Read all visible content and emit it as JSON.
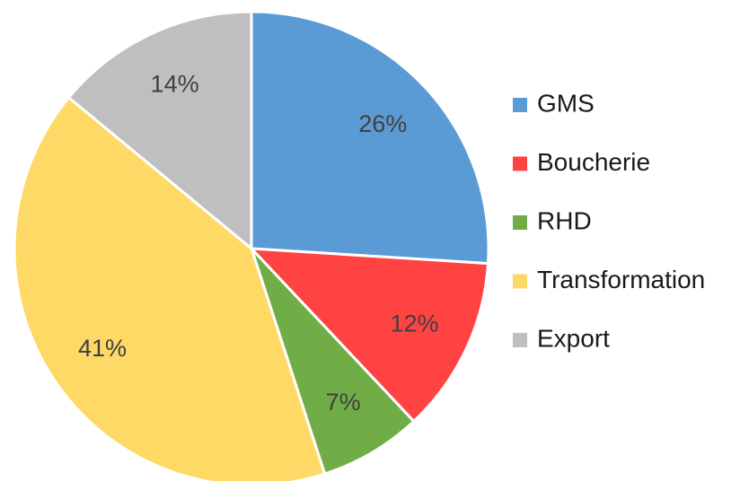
{
  "chart_data": {
    "type": "pie",
    "categories": [
      "GMS",
      "Boucherie",
      "RHD",
      "Transformation",
      "Export"
    ],
    "values": [
      26,
      12,
      7,
      41,
      14
    ],
    "value_labels": [
      "26%",
      "12%",
      "7%",
      "41%",
      "14%"
    ],
    "colors": [
      "#5b9bd5",
      "#ff4343",
      "#70ad47",
      "#ffd966",
      "#bfbfbf"
    ],
    "legend": "right"
  }
}
